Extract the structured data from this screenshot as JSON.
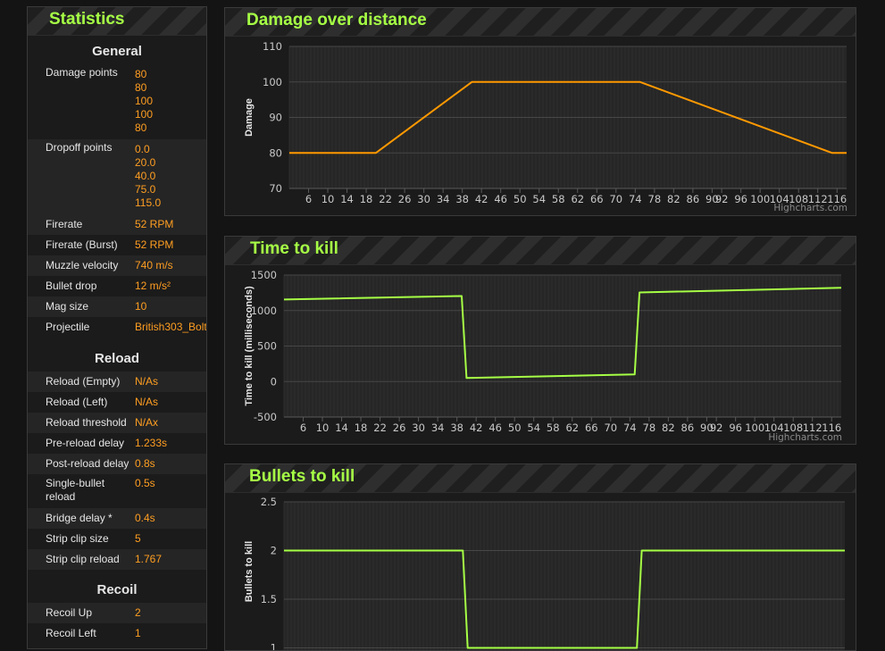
{
  "statistics": {
    "title": "Statistics",
    "general_title": "General",
    "damage_points_label": "Damage points",
    "damage_points": [
      "80",
      "80",
      "100",
      "100",
      "80"
    ],
    "dropoff_points_label": "Dropoff points",
    "dropoff_points": [
      "0.0",
      "20.0",
      "40.0",
      "75.0",
      "115.0"
    ],
    "general_rows": [
      {
        "label": "Firerate",
        "value": "52 RPM"
      },
      {
        "label": "Firerate (Burst)",
        "value": "52 RPM"
      },
      {
        "label": "Muzzle velocity",
        "value": "740 m/s"
      },
      {
        "label": "Bullet drop",
        "value": "12 m/s²"
      },
      {
        "label": "Mag size",
        "value": "10"
      },
      {
        "label": "Projectile",
        "value": "British303_Bolt"
      }
    ],
    "reload_title": "Reload",
    "reload_rows": [
      {
        "label": "Reload (Empty)",
        "value": "N/As"
      },
      {
        "label": "Reload (Left)",
        "value": "N/As"
      },
      {
        "label": "Reload threshold",
        "value": "N/Ax"
      },
      {
        "label": "Pre-reload delay",
        "value": "1.233s"
      },
      {
        "label": "Post-reload delay",
        "value": "0.8s"
      },
      {
        "label": "Single-bullet reload",
        "value": "0.5s"
      },
      {
        "label": "Bridge delay *",
        "value": "0.4s"
      },
      {
        "label": "Strip clip size",
        "value": "5"
      },
      {
        "label": "Strip clip reload",
        "value": "1.767"
      }
    ],
    "recoil_title": "Recoil",
    "recoil_rows": [
      {
        "label": "Recoil Up",
        "value": "2"
      },
      {
        "label": "Recoil Left",
        "value": "1"
      }
    ]
  },
  "colors": {
    "accent": "#a6ff45",
    "value": "#ff9e21",
    "damage_line": "#ff9900",
    "kill_line": "#a6ff45"
  },
  "chart_data": [
    {
      "type": "line",
      "title": "Damage over distance",
      "xlabel": "",
      "ylabel": "Damage",
      "xlim": [
        2,
        118
      ],
      "ylim": [
        70,
        110
      ],
      "ytick_values": [
        70,
        80,
        90,
        100,
        110
      ],
      "ytick_labels": [
        "70",
        "80",
        "90",
        "100",
        "110"
      ],
      "xtick_values": [
        6,
        10,
        14,
        18,
        22,
        26,
        30,
        34,
        38,
        42,
        46,
        50,
        54,
        58,
        62,
        66,
        70,
        74,
        78,
        82,
        86,
        90,
        92,
        96,
        100,
        104,
        108,
        112,
        116
      ],
      "xtick_labels": [
        "6",
        "10",
        "14",
        "18",
        "22",
        "26",
        "30",
        "34",
        "38",
        "42",
        "46",
        "50",
        "54",
        "58",
        "62",
        "66",
        "70",
        "74",
        "78",
        "82",
        "86",
        "90",
        "92",
        "96",
        "100",
        "104",
        "108",
        "112",
        "116"
      ],
      "grid": true,
      "credits": "Highcharts.com",
      "series": [
        {
          "x": [
            2,
            20,
            40,
            75,
            115,
            118
          ],
          "values": [
            80,
            80,
            100,
            100,
            80,
            80
          ]
        }
      ]
    },
    {
      "type": "line",
      "title": "Time to kill",
      "xlabel": "",
      "ylabel": "Time to kill (milliseconds)",
      "xlim": [
        2,
        118
      ],
      "ylim": [
        -500,
        1500
      ],
      "ytick_values": [
        -500,
        0,
        500,
        1000,
        1500
      ],
      "ytick_labels": [
        "-500",
        "0",
        "500",
        "1000",
        "1500"
      ],
      "xtick_values": [
        6,
        10,
        14,
        18,
        22,
        26,
        30,
        34,
        38,
        42,
        46,
        50,
        54,
        58,
        62,
        66,
        70,
        74,
        78,
        82,
        86,
        90,
        92,
        96,
        100,
        104,
        108,
        112,
        116
      ],
      "xtick_labels": [
        "6",
        "10",
        "14",
        "18",
        "22",
        "26",
        "30",
        "34",
        "38",
        "42",
        "46",
        "50",
        "54",
        "58",
        "62",
        "66",
        "70",
        "74",
        "78",
        "82",
        "86",
        "90",
        "92",
        "96",
        "100",
        "104",
        "108",
        "112",
        "116"
      ],
      "grid": true,
      "credits": "Highcharts.com",
      "series": [
        {
          "x": [
            2,
            39,
            40,
            75,
            76,
            118
          ],
          "values": [
            1155,
            1205,
            50,
            100,
            1255,
            1320
          ]
        }
      ]
    },
    {
      "type": "line",
      "title": "Bullets to kill",
      "xlabel": "",
      "ylabel": "Bullets to kill",
      "xlim": [
        2,
        118
      ],
      "ylim": [
        0.5,
        2.5
      ],
      "ytick_values": [
        1,
        1.5,
        2,
        2.5
      ],
      "ytick_labels": [
        "1",
        "1.5",
        "2",
        "2.5"
      ],
      "grid": true,
      "series": [
        {
          "x": [
            2,
            39,
            40,
            75,
            76,
            118
          ],
          "values": [
            2,
            2,
            1,
            1,
            2,
            2
          ]
        }
      ]
    }
  ]
}
